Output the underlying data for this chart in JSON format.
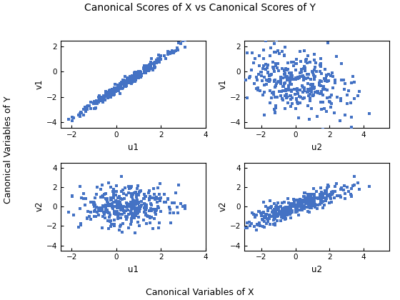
{
  "title": "Canonical Scores of X vs Canonical Scores of Y",
  "marker_color": "#4472C4",
  "marker": "s",
  "marker_size": 3.5,
  "fig_bg": "#ffffff",
  "ax_bg": "#ffffff",
  "subplots": [
    {
      "xlabel": "u1",
      "ylabel": "v1",
      "xlim": [
        -2.5,
        4.0
      ],
      "ylim": [
        -4.5,
        2.5
      ],
      "xticks": [
        -2,
        0,
        2,
        4
      ],
      "yticks": [
        -4,
        -2,
        0,
        2
      ]
    },
    {
      "xlabel": "u2",
      "ylabel": "v1",
      "xlim": [
        -3.0,
        5.5
      ],
      "ylim": [
        -4.5,
        2.5
      ],
      "xticks": [
        -2,
        0,
        2,
        4
      ],
      "yticks": [
        -4,
        -2,
        0,
        2
      ]
    },
    {
      "xlabel": "u1",
      "ylabel": "v2",
      "xlim": [
        -2.5,
        4.0
      ],
      "ylim": [
        -4.5,
        4.5
      ],
      "xticks": [
        -2,
        0,
        2,
        4
      ],
      "yticks": [
        -4,
        -2,
        0,
        2,
        4
      ]
    },
    {
      "xlabel": "u2",
      "ylabel": "v2",
      "xlim": [
        -3.0,
        5.5
      ],
      "ylim": [
        -4.5,
        4.5
      ],
      "xticks": [
        -2,
        0,
        2,
        4
      ],
      "yticks": [
        -4,
        -2,
        0,
        2,
        4
      ]
    }
  ],
  "super_xlabel": "Canonical Variables of X",
  "super_ylabel": "Canonical Variables of Y",
  "seed": 2023,
  "n_samples": 350
}
